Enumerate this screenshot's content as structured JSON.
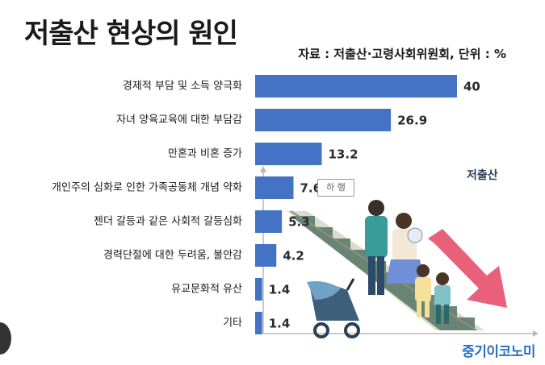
{
  "title": "저출산 현상의 원인",
  "source": "자료 : 저출산·고령사회위원회, 단위 : %",
  "illustration_label": "저출산",
  "callout_label": "하 행",
  "logo": "중기이코노미",
  "colors": {
    "bar": "#4472c4",
    "arrow": "#e8607a",
    "stair": "#d9dccb"
  },
  "chart_data": {
    "type": "bar",
    "orientation": "horizontal",
    "title": "저출산 현상의 원인",
    "categories": [
      "경제적 부담 및 소득 양극화",
      "자녀 양육교육에 대한 부담감",
      "만혼과 비혼 증가",
      "개인주의 심화로 인한 가족공동체 개념 약화",
      "젠더 갈등과 같은 사회적 갈등심화",
      "경력단절에 대한 두려움, 불안감",
      "유교문화적 유산",
      "기타"
    ],
    "values": [
      40,
      26.9,
      13.2,
      7.6,
      5.3,
      4.2,
      1.4,
      1.4
    ],
    "value_labels": [
      "40",
      "26.9",
      "13.2",
      "7.6",
      "5.3",
      "4.2",
      "1.4",
      "1.4"
    ],
    "xlim": [
      0,
      40
    ],
    "unit": "%",
    "grid": false
  }
}
